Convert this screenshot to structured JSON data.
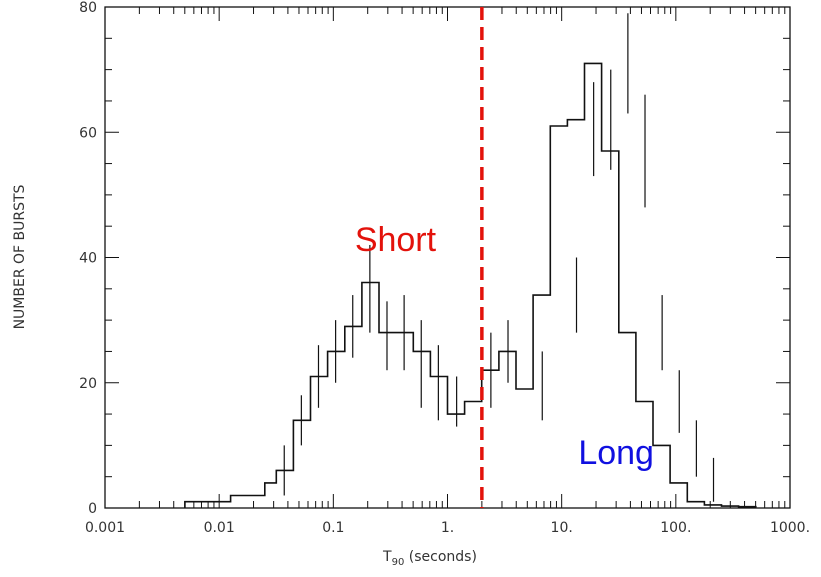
{
  "chart_data": {
    "type": "bar",
    "title": "",
    "xlabel": "T",
    "xlabel_sub": "90",
    "xlabel_suffix": "(seconds)",
    "ylabel": "NUMBER OF BURSTS",
    "x_scale": "log",
    "xlim": [
      0.001,
      1000
    ],
    "ylim": [
      0,
      80
    ],
    "x_tick_labels": [
      {
        "value": 0.001,
        "label": "0.001"
      },
      {
        "value": 0.01,
        "label": "0.01"
      },
      {
        "value": 0.1,
        "label": "0.1"
      },
      {
        "value": 1,
        "label": "1."
      },
      {
        "value": 10,
        "label": "10."
      },
      {
        "value": 100,
        "label": "100."
      },
      {
        "value": 1000,
        "label": "1000."
      }
    ],
    "y_ticks": [
      0,
      20,
      40,
      60,
      80
    ],
    "grid": false,
    "bin_edges_log10": [
      -2.3,
      -1.9,
      -1.6,
      -1.5,
      -1.35,
      -1.2,
      -1.05,
      -0.9,
      -0.75,
      -0.6,
      -0.45,
      -0.3,
      -0.15,
      0.0,
      0.15,
      0.3,
      0.45,
      0.6,
      0.75,
      0.9,
      1.05,
      1.2,
      1.35,
      1.5,
      1.65,
      1.8,
      1.95,
      2.1,
      2.25,
      2.4,
      2.55,
      2.7
    ],
    "values": [
      1,
      2,
      4,
      6,
      14,
      21,
      25,
      29,
      36,
      28,
      28,
      25,
      21,
      15,
      17,
      22,
      25,
      19,
      34,
      61,
      62,
      71,
      57,
      28,
      17,
      10,
      4,
      1,
      0.5,
      0.3,
      0.2
    ],
    "error_bars": [
      {
        "x_log10": -1.43,
        "low": 2,
        "high": 10
      },
      {
        "x_log10": -1.28,
        "low": 10,
        "high": 18
      },
      {
        "x_log10": -1.13,
        "low": 16,
        "high": 26
      },
      {
        "x_log10": -0.98,
        "low": 20,
        "high": 30
      },
      {
        "x_log10": -0.83,
        "low": 24,
        "high": 34
      },
      {
        "x_log10": -0.68,
        "low": 28,
        "high": 42
      },
      {
        "x_log10": -0.53,
        "low": 22,
        "high": 33
      },
      {
        "x_log10": -0.38,
        "low": 22,
        "high": 34
      },
      {
        "x_log10": -0.23,
        "low": 16,
        "high": 30
      },
      {
        "x_log10": -0.08,
        "low": 14,
        "high": 26
      },
      {
        "x_log10": 0.08,
        "low": 13,
        "high": 21
      },
      {
        "x_log10": 0.38,
        "low": 16,
        "high": 28
      },
      {
        "x_log10": 0.53,
        "low": 20,
        "high": 30
      },
      {
        "x_log10": 0.83,
        "low": 14,
        "high": 25
      },
      {
        "x_log10": 1.13,
        "low": 28,
        "high": 40
      },
      {
        "x_log10": 1.28,
        "low": 53,
        "high": 68
      },
      {
        "x_log10": 1.43,
        "low": 54,
        "high": 70
      },
      {
        "x_log10": 1.58,
        "low": 63,
        "high": 79
      },
      {
        "x_log10": 1.73,
        "low": 48,
        "high": 66
      },
      {
        "x_log10": 1.88,
        "low": 22,
        "high": 34
      },
      {
        "x_log10": 2.03,
        "low": 12,
        "high": 22
      },
      {
        "x_log10": 2.18,
        "low": 5,
        "high": 14
      },
      {
        "x_log10": 2.33,
        "low": 1,
        "high": 8
      }
    ],
    "divider": {
      "x": 2,
      "color": "#e3120b",
      "style": "dashed"
    },
    "annotations": [
      {
        "text": "Short",
        "color": "#e3120b",
        "at": {
          "x": 0.35,
          "y": 41
        }
      },
      {
        "text": "Long",
        "color": "#1010e0",
        "at": {
          "x": 30,
          "y": 7
        }
      }
    ]
  }
}
